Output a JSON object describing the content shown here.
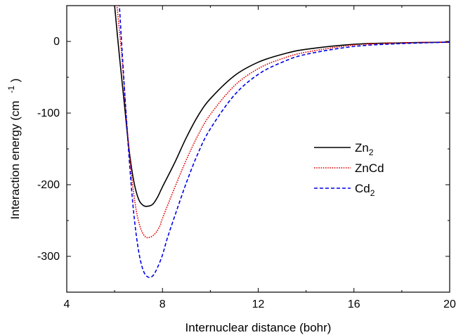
{
  "chart_data": {
    "type": "line",
    "title": "",
    "xlabel": "Internuclear distance (bohr)",
    "ylabel": "Interaction energy (cm",
    "ylabel_sup": "-1",
    "ylabel_close": ")",
    "xlim": [
      4,
      20
    ],
    "ylim": [
      -350,
      50
    ],
    "xticks": [
      4,
      8,
      12,
      16,
      20
    ],
    "xtick_labels": [
      "4",
      "8",
      "12",
      "16",
      "20"
    ],
    "yticks": [
      0,
      -100,
      -200,
      -300
    ],
    "ytick_labels": [
      "0",
      "-100",
      "-200",
      "-300"
    ],
    "grid": false,
    "legend_position": "center-right",
    "series": [
      {
        "name": "Zn",
        "name_sub": "2",
        "color": "#000000",
        "dash": "solid",
        "x": [
          6.0,
          6.2,
          6.4,
          6.6,
          6.8,
          7.0,
          7.2,
          7.4,
          7.6,
          7.8,
          8.0,
          8.5,
          9.0,
          9.5,
          10.0,
          11.0,
          12.0,
          13.0,
          14.0,
          16.0,
          18.0,
          20.0
        ],
        "y": [
          50,
          -20,
          -85,
          -150,
          -195,
          -220,
          -229,
          -230,
          -227,
          -217,
          -203,
          -170,
          -134,
          -103,
          -80,
          -48,
          -29,
          -18,
          -11,
          -4,
          -2,
          -1
        ]
      },
      {
        "name": "ZnCd",
        "name_sub": "",
        "color": "#e00000",
        "dash": "dotted",
        "x": [
          6.1,
          6.3,
          6.5,
          6.7,
          6.9,
          7.1,
          7.3,
          7.5,
          7.7,
          7.9,
          8.0,
          8.5,
          9.0,
          9.5,
          10.0,
          11.0,
          12.0,
          13.0,
          14.0,
          16.0,
          18.0,
          20.0
        ],
        "y": [
          50,
          -20,
          -110,
          -185,
          -235,
          -262,
          -273,
          -273,
          -268,
          -257,
          -247,
          -205,
          -165,
          -130,
          -102,
          -62,
          -38,
          -24,
          -15,
          -5,
          -2,
          -1
        ]
      },
      {
        "name": "Cd",
        "name_sub": "2",
        "color": "#0000e6",
        "dash": "dashed",
        "x": [
          6.2,
          6.4,
          6.6,
          6.8,
          7.0,
          7.2,
          7.4,
          7.6,
          7.8,
          8.0,
          8.2,
          8.5,
          9.0,
          9.5,
          10.0,
          11.0,
          12.0,
          13.0,
          14.0,
          16.0,
          18.0,
          20.0
        ],
        "y": [
          50,
          -60,
          -160,
          -240,
          -292,
          -320,
          -329,
          -327,
          -315,
          -298,
          -275,
          -245,
          -197,
          -155,
          -122,
          -75,
          -46,
          -29,
          -18,
          -7,
          -3,
          -1
        ]
      }
    ]
  }
}
